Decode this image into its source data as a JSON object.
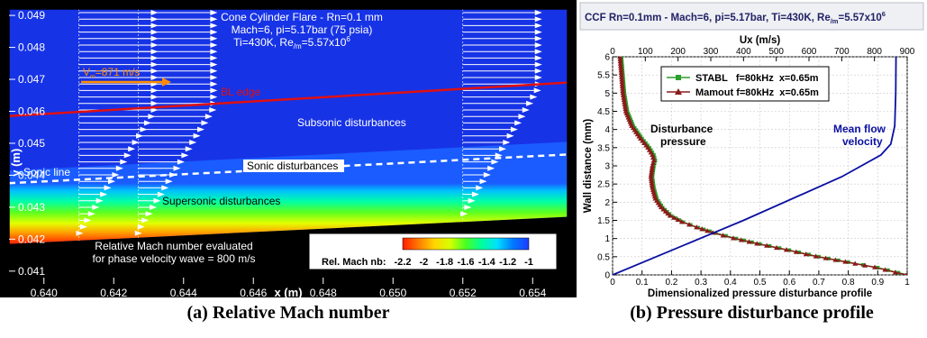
{
  "panels": [
    {
      "caption": "(a) Relative Mach number",
      "title_lines": [
        "Cone Cylinder Flare - Rn=0.1 mm",
        "Mach=6, pi=5.17bar (75 psia)",
        "Ti=430K, Re"
      ],
      "title_re_sub": "/m",
      "title_re_val": "=5.57x10",
      "title_re_exp": "6",
      "annotations": {
        "vinf_prefix": "V",
        "vinf_sub": "∞",
        "vinf_value": "=871 m/s",
        "bl_edge": "BL edge",
        "subsonic": "Subsonic disturbances",
        "sonic": "Sonic disturbances",
        "sonic_line": "Sonic line",
        "supersonic": "Supersonic disturbances",
        "note_line1": "Relative Mach number evaluated",
        "note_line2": "for phase velocity wave = 800 m/s"
      },
      "colorbar": {
        "label": "Rel. Mach nb:",
        "ticks": [
          "-2.2",
          "-2",
          "-1.8",
          "-1.6",
          "-1.4",
          "-1.2",
          "-1"
        ],
        "colors": [
          "#ff1a00",
          "#ff7a00",
          "#ffd400",
          "#d6ff00",
          "#49ff23",
          "#00ff9a",
          "#00e0ff",
          "#0078ff",
          "#1e3cff"
        ]
      },
      "chart_data": {
        "type": "heatmap",
        "xlabel": "x (m)",
        "ylabel": "y (m)",
        "xlim": [
          0.639,
          0.655
        ],
        "ylim": [
          0.0406,
          0.0492
        ],
        "x_ticks": [
          "0.640",
          "0.642",
          "0.644",
          "0.646",
          "0.648",
          "0.650",
          "0.652",
          "0.654"
        ],
        "y_ticks": [
          "0.041",
          "0.042",
          "0.043",
          "0.044",
          "0.045",
          "0.046",
          "0.047",
          "0.048",
          "0.049"
        ],
        "wall": [
          [
            0.639,
            0.04185
          ],
          [
            0.655,
            0.0427
          ]
        ],
        "bl_edge": [
          [
            0.639,
            0.04585
          ],
          [
            0.655,
            0.0469
          ]
        ],
        "sonic_line": [
          [
            0.639,
            0.04375
          ],
          [
            0.655,
            0.04465
          ]
        ],
        "velocity_profiles_x": [
          0.641,
          0.6427,
          0.652
        ]
      }
    },
    {
      "caption": "(b) Pressure disturbance profile",
      "title_main": "CCF Rn=0.1mm - Mach=6, pi=5.17bar, Ti=430K, Re",
      "title_sub": "/m",
      "title_val": "=5.57x10",
      "title_exp": "6",
      "annotations": {
        "disturbance_pressure": [
          "Disturbance",
          "pressure"
        ],
        "mean_flow": [
          "Mean flow",
          "velocity"
        ]
      },
      "chart_data": {
        "type": "line",
        "xlabel": "Dimensionalized pressure disturbance profile",
        "x2label": "Ux (m/s)",
        "ylabel": "Wall distance (mm)",
        "xlim": [
          0,
          1
        ],
        "x2lim": [
          0,
          900
        ],
        "ylim": [
          0,
          6
        ],
        "x_ticks": [
          0,
          0.1,
          0.2,
          0.3,
          0.4,
          0.5,
          0.6,
          0.7,
          0.8,
          0.9,
          1
        ],
        "x_tick_labels": [
          "0",
          "0.1",
          "0.2",
          "0.3",
          "0.4",
          "0.5",
          "0.6",
          "0.7",
          "0.8",
          "0.9",
          "1"
        ],
        "x2_ticks": [
          0,
          100,
          200,
          300,
          400,
          500,
          600,
          700,
          800,
          900
        ],
        "x2_tick_labels": [
          "0",
          "100",
          "200",
          "300",
          "400",
          "500",
          "600",
          "700",
          "800",
          "900"
        ],
        "y_ticks": [
          0,
          0.5,
          1,
          1.5,
          2,
          2.5,
          3,
          3.5,
          4,
          4.5,
          5,
          5.5,
          6
        ],
        "y_tick_labels": [
          "0",
          "0.5",
          "1",
          "1.5",
          "2",
          "2.5",
          "3",
          "3.5",
          "4",
          "4.5",
          "5",
          "5.5",
          "6"
        ],
        "legend_position": "top-center",
        "series": [
          {
            "name": "STABL   f=80kHz  x=0.65m",
            "color": "#2aa02a",
            "marker": "square",
            "points": [
              [
                1.0,
                0
              ],
              [
                0.97,
                0.06
              ],
              [
                0.9,
                0.2
              ],
              [
                0.8,
                0.35
              ],
              [
                0.7,
                0.5
              ],
              [
                0.6,
                0.68
              ],
              [
                0.5,
                0.85
              ],
              [
                0.42,
                1.0
              ],
              [
                0.35,
                1.15
              ],
              [
                0.29,
                1.3
              ],
              [
                0.24,
                1.45
              ],
              [
                0.2,
                1.62
              ],
              [
                0.17,
                1.85
              ],
              [
                0.15,
                2.1
              ],
              [
                0.14,
                2.4
              ],
              [
                0.135,
                2.7
              ],
              [
                0.14,
                3.0
              ],
              [
                0.145,
                3.15
              ],
              [
                0.14,
                3.3
              ],
              [
                0.125,
                3.5
              ],
              [
                0.1,
                3.75
              ],
              [
                0.07,
                4.1
              ],
              [
                0.05,
                4.5
              ],
              [
                0.04,
                5.0
              ],
              [
                0.035,
                5.5
              ],
              [
                0.03,
                6.0
              ]
            ]
          },
          {
            "name": "Mamout f=80kHz  x=0.65m",
            "color": "#8b1a1a",
            "marker": "triangle",
            "points": [
              [
                1.0,
                0
              ],
              [
                0.96,
                0.07
              ],
              [
                0.89,
                0.21
              ],
              [
                0.79,
                0.36
              ],
              [
                0.69,
                0.51
              ],
              [
                0.59,
                0.69
              ],
              [
                0.49,
                0.86
              ],
              [
                0.41,
                1.01
              ],
              [
                0.34,
                1.16
              ],
              [
                0.285,
                1.31
              ],
              [
                0.235,
                1.46
              ],
              [
                0.195,
                1.63
              ],
              [
                0.165,
                1.86
              ],
              [
                0.145,
                2.1
              ],
              [
                0.135,
                2.4
              ],
              [
                0.13,
                2.7
              ],
              [
                0.135,
                3.0
              ],
              [
                0.14,
                3.15
              ],
              [
                0.135,
                3.3
              ],
              [
                0.12,
                3.5
              ],
              [
                0.095,
                3.75
              ],
              [
                0.065,
                4.1
              ],
              [
                0.045,
                4.5
              ],
              [
                0.035,
                5.0
              ],
              [
                0.03,
                5.5
              ],
              [
                0.025,
                6.0
              ]
            ]
          },
          {
            "name": "Mean flow velocity",
            "color": "#0a10a0",
            "axis": "x2",
            "points": [
              [
                0,
                0
              ],
              [
                400,
                1.5
              ],
              [
                700,
                2.7
              ],
              [
                820,
                3.3
              ],
              [
                850,
                3.6
              ],
              [
                862,
                4.1
              ],
              [
                865,
                5.0
              ],
              [
                866,
                6.0
              ]
            ]
          }
        ]
      }
    }
  ]
}
